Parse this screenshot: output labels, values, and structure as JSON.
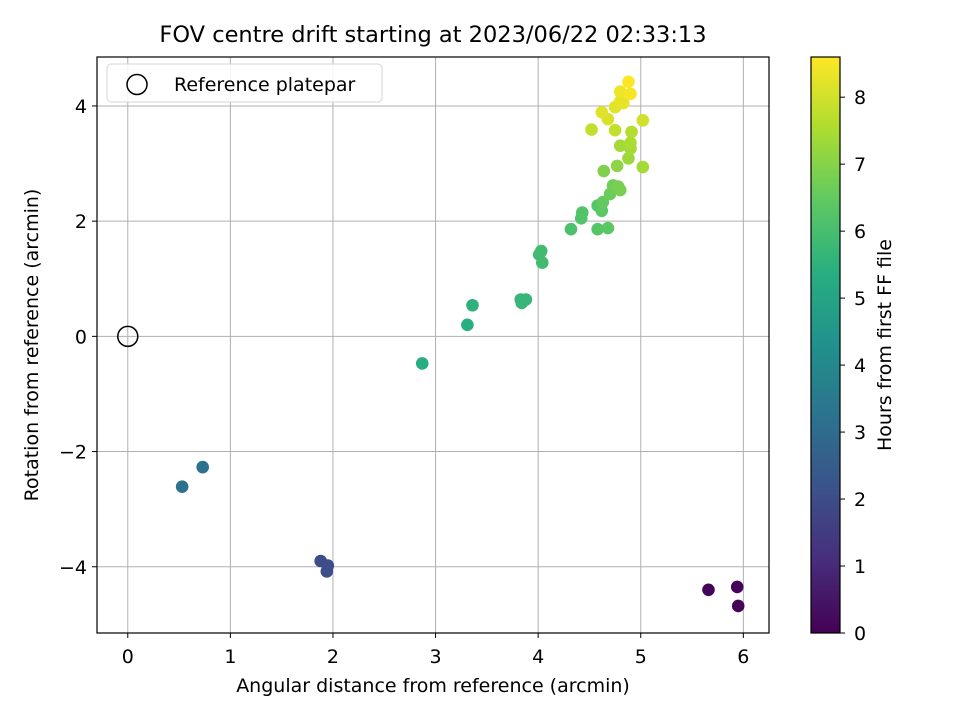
{
  "chart_data": {
    "type": "scatter",
    "title": "FOV centre drift starting at 2023/06/22 02:33:13",
    "xlabel": "Angular distance from reference (arcmin)",
    "ylabel": "Rotation from reference (arcmin)",
    "xlim": [
      -0.3,
      6.25
    ],
    "ylim": [
      -5.15,
      4.85
    ],
    "xticks": [
      0,
      1,
      2,
      3,
      4,
      5,
      6
    ],
    "yticks": [
      -4,
      -2,
      0,
      2,
      4
    ],
    "grid": true,
    "legend": {
      "position": "top-left",
      "entries": [
        "Reference platepar"
      ]
    },
    "reference_point": {
      "x": 0,
      "y": 0,
      "label": "Reference platepar"
    },
    "colorbar": {
      "label": "Hours from first FF file",
      "colormap": "viridis",
      "range": [
        0,
        8.6
      ],
      "ticks": [
        0,
        1,
        2,
        3,
        4,
        5,
        6,
        7,
        8
      ]
    },
    "points": [
      {
        "x": 5.66,
        "y": -4.4,
        "c": 0.1
      },
      {
        "x": 5.94,
        "y": -4.35,
        "c": 0.1
      },
      {
        "x": 5.95,
        "y": -4.68,
        "c": 0.1
      },
      {
        "x": 1.88,
        "y": -3.9,
        "c": 2.0
      },
      {
        "x": 1.95,
        "y": -3.98,
        "c": 2.0
      },
      {
        "x": 1.94,
        "y": -4.08,
        "c": 2.0
      },
      {
        "x": 0.53,
        "y": -2.61,
        "c": 3.2
      },
      {
        "x": 0.73,
        "y": -2.27,
        "c": 3.2
      },
      {
        "x": 2.87,
        "y": -0.47,
        "c": 5.3
      },
      {
        "x": 3.31,
        "y": 0.2,
        "c": 5.4
      },
      {
        "x": 3.36,
        "y": 0.54,
        "c": 5.5
      },
      {
        "x": 3.83,
        "y": 0.64,
        "c": 5.7
      },
      {
        "x": 3.84,
        "y": 0.58,
        "c": 5.7
      },
      {
        "x": 3.88,
        "y": 0.64,
        "c": 5.7
      },
      {
        "x": 4.01,
        "y": 1.42,
        "c": 5.9
      },
      {
        "x": 4.03,
        "y": 1.48,
        "c": 5.9
      },
      {
        "x": 4.04,
        "y": 1.28,
        "c": 5.9
      },
      {
        "x": 4.32,
        "y": 1.86,
        "c": 6.1
      },
      {
        "x": 4.42,
        "y": 2.05,
        "c": 6.2
      },
      {
        "x": 4.43,
        "y": 2.15,
        "c": 6.2
      },
      {
        "x": 4.58,
        "y": 1.86,
        "c": 6.3
      },
      {
        "x": 4.68,
        "y": 1.88,
        "c": 6.4
      },
      {
        "x": 4.58,
        "y": 2.27,
        "c": 6.3
      },
      {
        "x": 4.62,
        "y": 2.18,
        "c": 6.4
      },
      {
        "x": 4.63,
        "y": 2.33,
        "c": 6.5
      },
      {
        "x": 4.7,
        "y": 2.47,
        "c": 6.6
      },
      {
        "x": 4.73,
        "y": 2.62,
        "c": 6.7
      },
      {
        "x": 4.78,
        "y": 2.6,
        "c": 6.8
      },
      {
        "x": 4.8,
        "y": 2.54,
        "c": 6.8
      },
      {
        "x": 4.64,
        "y": 2.87,
        "c": 6.9
      },
      {
        "x": 4.77,
        "y": 2.96,
        "c": 7.1
      },
      {
        "x": 4.88,
        "y": 3.09,
        "c": 7.3
      },
      {
        "x": 4.8,
        "y": 3.31,
        "c": 7.4
      },
      {
        "x": 4.9,
        "y": 3.26,
        "c": 7.4
      },
      {
        "x": 4.9,
        "y": 3.36,
        "c": 7.5
      },
      {
        "x": 5.02,
        "y": 2.94,
        "c": 7.4
      },
      {
        "x": 4.91,
        "y": 3.55,
        "c": 7.6
      },
      {
        "x": 4.52,
        "y": 3.59,
        "c": 7.8
      },
      {
        "x": 4.75,
        "y": 3.58,
        "c": 7.8
      },
      {
        "x": 5.02,
        "y": 3.75,
        "c": 8.0
      },
      {
        "x": 4.68,
        "y": 3.77,
        "c": 8.1
      },
      {
        "x": 4.62,
        "y": 3.89,
        "c": 8.2
      },
      {
        "x": 4.75,
        "y": 3.98,
        "c": 8.2
      },
      {
        "x": 4.8,
        "y": 4.08,
        "c": 8.3
      },
      {
        "x": 4.83,
        "y": 4.05,
        "c": 8.3
      },
      {
        "x": 4.8,
        "y": 4.25,
        "c": 8.4
      },
      {
        "x": 4.9,
        "y": 4.21,
        "c": 8.5
      },
      {
        "x": 4.88,
        "y": 4.42,
        "c": 8.6
      }
    ]
  }
}
